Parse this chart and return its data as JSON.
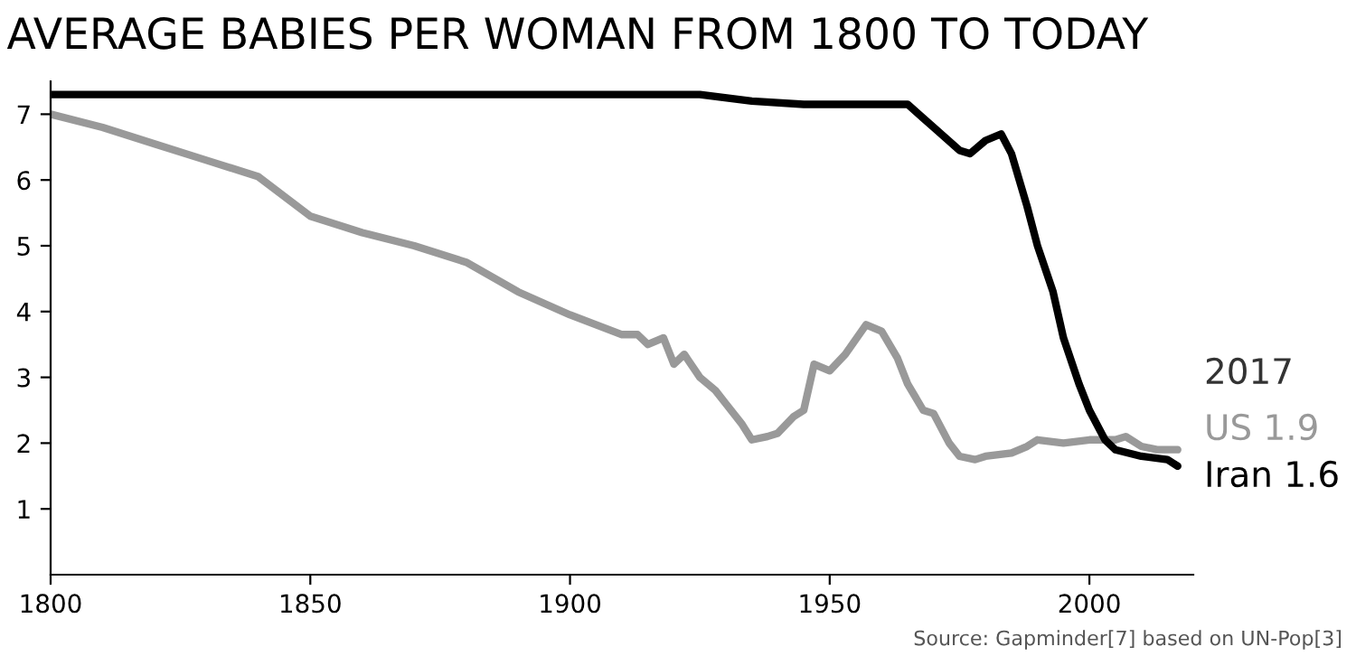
{
  "chart_data": {
    "type": "line",
    "title": "AVERAGE BABIES PER WOMAN FROM 1800 TO TODAY",
    "xlim": [
      1800,
      2020
    ],
    "xticks": [
      1800,
      1850,
      1900,
      1950,
      2000
    ],
    "ylim": [
      0,
      7.5
    ],
    "yticks": [
      1,
      2,
      3,
      4,
      5,
      6,
      7
    ],
    "grid": false,
    "legend": false,
    "series": [
      {
        "name": "US 1.9",
        "color": "#999999",
        "x": [
          1800,
          1810,
          1820,
          1830,
          1840,
          1850,
          1860,
          1870,
          1880,
          1890,
          1900,
          1905,
          1910,
          1913,
          1915,
          1918,
          1920,
          1922,
          1925,
          1928,
          1930,
          1933,
          1935,
          1938,
          1940,
          1943,
          1945,
          1947,
          1950,
          1953,
          1957,
          1960,
          1963,
          1965,
          1968,
          1970,
          1973,
          1975,
          1978,
          1980,
          1985,
          1988,
          1990,
          1995,
          2000,
          2005,
          2007,
          2010,
          2013,
          2017
        ],
        "values": [
          7.0,
          6.8,
          6.55,
          6.3,
          6.05,
          5.45,
          5.2,
          5.0,
          4.75,
          4.3,
          3.95,
          3.8,
          3.65,
          3.65,
          3.5,
          3.6,
          3.2,
          3.35,
          3.0,
          2.8,
          2.6,
          2.3,
          2.05,
          2.1,
          2.15,
          2.4,
          2.5,
          3.2,
          3.1,
          3.35,
          3.8,
          3.7,
          3.3,
          2.9,
          2.5,
          2.45,
          2.0,
          1.8,
          1.75,
          1.8,
          1.85,
          1.95,
          2.05,
          2.0,
          2.05,
          2.05,
          2.1,
          1.95,
          1.9,
          1.9
        ]
      },
      {
        "name": "Iran 1.6",
        "color": "#000000",
        "x": [
          1800,
          1850,
          1900,
          1925,
          1935,
          1945,
          1955,
          1965,
          1970,
          1975,
          1977,
          1980,
          1983,
          1985,
          1988,
          1990,
          1993,
          1995,
          1998,
          2000,
          2003,
          2005,
          2010,
          2015,
          2017
        ],
        "values": [
          7.3,
          7.3,
          7.3,
          7.3,
          7.2,
          7.15,
          7.15,
          7.15,
          6.8,
          6.45,
          6.4,
          6.6,
          6.7,
          6.4,
          5.6,
          5.0,
          4.3,
          3.6,
          2.9,
          2.5,
          2.05,
          1.9,
          1.8,
          1.75,
          1.65
        ]
      }
    ],
    "annotations": [
      "2017",
      "Source: Gapminder[7] based on UN-Pop[3]"
    ]
  }
}
